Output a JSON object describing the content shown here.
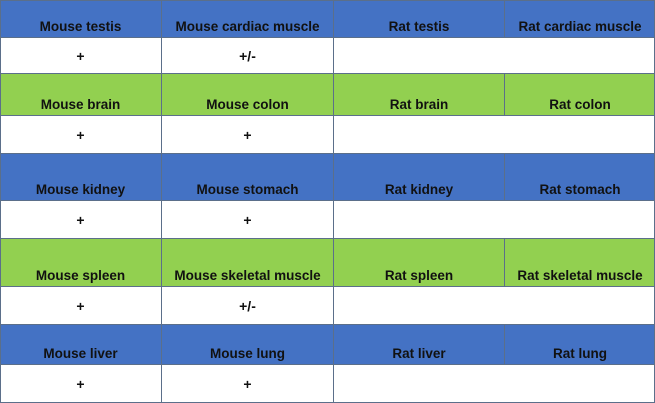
{
  "table": {
    "colors": {
      "blue": "#4472c4",
      "green": "#92d050",
      "white": "#ffffff"
    },
    "rows": [
      {
        "band": "blue",
        "headers": [
          "Mouse testis",
          "Mouse cardiac muscle",
          "Rat testis",
          "Rat cardiac muscle"
        ],
        "values": [
          "+",
          "+/-",
          ""
        ]
      },
      {
        "band": "green",
        "headers": [
          "Mouse brain",
          "Mouse colon",
          "Rat brain",
          "Rat colon"
        ],
        "values": [
          "+",
          "+",
          ""
        ]
      },
      {
        "band": "blue",
        "headers": [
          "Mouse kidney",
          "Mouse stomach",
          "Rat kidney",
          "Rat stomach"
        ],
        "values": [
          "+",
          "+",
          ""
        ]
      },
      {
        "band": "green",
        "headers": [
          "Mouse spleen",
          "Mouse skeletal muscle",
          "Rat spleen",
          "Rat skeletal muscle"
        ],
        "values": [
          "+",
          "+/-",
          ""
        ]
      },
      {
        "band": "blue",
        "headers": [
          "Mouse liver",
          "Mouse lung",
          "Rat liver",
          "Rat lung"
        ],
        "values": [
          "+",
          "+",
          ""
        ]
      }
    ]
  }
}
